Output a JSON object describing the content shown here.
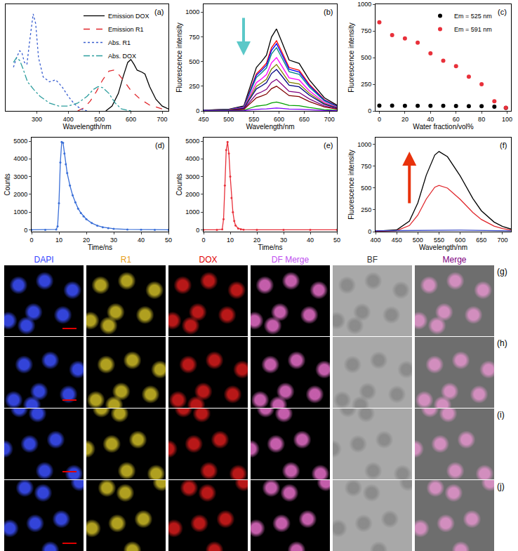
{
  "chart_data": [
    {
      "type": "line",
      "label": "(a)",
      "x_label": "Wavelength/nm",
      "xlim": [
        200,
        720
      ],
      "xticks": [
        300,
        400,
        500,
        600,
        700
      ],
      "ylim": [
        0,
        1.1
      ],
      "tick_labels": "x",
      "grid": false,
      "legend": "top right",
      "series": [
        {
          "name": "Emission DOX",
          "color": "#000000",
          "line_style": "solid",
          "x": [
            520,
            540,
            560,
            575,
            590,
            600,
            610,
            620,
            635,
            645,
            660,
            680,
            700,
            720
          ],
          "values": [
            0,
            0.05,
            0.18,
            0.35,
            0.5,
            0.53,
            0.48,
            0.42,
            0.4,
            0.38,
            0.25,
            0.12,
            0.05,
            0.02
          ]
        },
        {
          "name": "Emission R1",
          "color": "#e0262b",
          "line_style": "dash",
          "x": [
            430,
            450,
            470,
            490,
            510,
            530,
            545,
            560,
            580,
            600,
            630,
            660,
            700,
            720
          ],
          "values": [
            0,
            0.03,
            0.1,
            0.2,
            0.32,
            0.41,
            0.42,
            0.38,
            0.3,
            0.21,
            0.12,
            0.06,
            0.02,
            0.01
          ]
        },
        {
          "name": "Abs. R1",
          "color": "#3a5fd0",
          "line_style": "dot",
          "x": [
            225,
            235,
            245,
            252,
            260,
            268,
            278,
            288,
            296,
            305,
            320,
            340,
            360,
            380,
            400,
            420,
            440,
            460
          ],
          "values": [
            0.45,
            0.55,
            0.62,
            0.6,
            0.5,
            0.48,
            0.75,
            1.0,
            0.9,
            0.55,
            0.35,
            0.3,
            0.32,
            0.25,
            0.15,
            0.07,
            0.02,
            0
          ]
        },
        {
          "name": "Abs. DOX",
          "color": "#2e9e9e",
          "line_style": "dashdot",
          "x": [
            225,
            235,
            245,
            255,
            270,
            290,
            310,
            340,
            370,
            400,
            430,
            460,
            480,
            495,
            510,
            530,
            550,
            570,
            600
          ],
          "values": [
            0.5,
            0.55,
            0.52,
            0.44,
            0.3,
            0.22,
            0.15,
            0.08,
            0.05,
            0.05,
            0.08,
            0.15,
            0.22,
            0.25,
            0.24,
            0.18,
            0.08,
            0.02,
            0
          ]
        }
      ]
    },
    {
      "type": "line",
      "label": "(b)",
      "x_label": "Wavelength/nm",
      "y_label": "Fluorescence intensity",
      "xlim": [
        450,
        715
      ],
      "xticks": [
        450,
        500,
        550,
        600,
        650,
        700
      ],
      "ylim": [
        0,
        1080
      ],
      "yticks": [
        0,
        250,
        500,
        750,
        1000
      ],
      "grid": false,
      "x": [
        450,
        500,
        530,
        545,
        555,
        565,
        575,
        585,
        595,
        605,
        620,
        640,
        660,
        690,
        715
      ],
      "series": [
        {
          "color": "#000000",
          "values": [
            8,
            17,
            50,
            291,
            440,
            498,
            564,
            747,
            830,
            706,
            515,
            481,
            315,
            133,
            58
          ]
        },
        {
          "color": "#ff0000",
          "values": [
            7,
            14,
            43,
            249,
            376,
            426,
            483,
            639,
            710,
            604,
            440,
            412,
            270,
            114,
            50
          ]
        },
        {
          "color": "#0000ff",
          "values": [
            7,
            14,
            41,
            238,
            360,
            408,
            462,
            612,
            680,
            578,
            422,
            394,
            258,
            109,
            48
          ]
        },
        {
          "color": "#008080",
          "values": [
            6,
            13,
            38,
            224,
            339,
            384,
            435,
            576,
            640,
            544,
            397,
            371,
            243,
            102,
            45
          ]
        },
        {
          "color": "#ff00ff",
          "values": [
            5,
            11,
            32,
            189,
            286,
            324,
            367,
            486,
            540,
            459,
            335,
            313,
            205,
            86,
            38
          ]
        },
        {
          "color": "#808000",
          "values": [
            5,
            9,
            28,
            165,
            249,
            282,
            320,
            423,
            470,
            400,
            291,
            273,
            179,
            75,
            33
          ]
        },
        {
          "color": "#000080",
          "values": [
            4,
            8,
            25,
            147,
            223,
            252,
            286,
            378,
            420,
            357,
            260,
            244,
            160,
            67,
            29
          ]
        },
        {
          "color": "#800080",
          "values": [
            3,
            6,
            19,
            112,
            170,
            192,
            218,
            288,
            320,
            272,
            198,
            186,
            122,
            51,
            22
          ]
        },
        {
          "color": "#800000",
          "values": [
            3,
            5,
            15,
            88,
            133,
            150,
            170,
            225,
            250,
            213,
            155,
            145,
            95,
            40,
            18
          ]
        },
        {
          "color": "#00a000",
          "values": [
            2,
            3,
            6,
            32,
            48,
            54,
            61,
            81,
            90,
            77,
            56,
            52,
            34,
            14,
            6
          ]
        },
        {
          "color": "#8000ff",
          "values": [
            1,
            2,
            3,
            11,
            16,
            18,
            20,
            27,
            30,
            26,
            19,
            17,
            11,
            5,
            2
          ]
        }
      ]
    },
    {
      "type": "scatter",
      "label": "(c)",
      "x_label": "Water fraction/vol%",
      "y_label": "Fluorescence intensity",
      "xlim": [
        -3,
        103
      ],
      "xticks": [
        0,
        20,
        40,
        60,
        80,
        100
      ],
      "ylim": [
        0,
        1000
      ],
      "yticks": [
        0,
        250,
        500,
        750,
        1000
      ],
      "grid": false,
      "legend": "top right",
      "x": [
        0,
        10,
        20,
        30,
        40,
        50,
        60,
        70,
        80,
        90,
        99
      ],
      "series": [
        {
          "name": "Em = 525 nm",
          "color": "#000000",
          "marker": "circle",
          "values": [
            50,
            50,
            48,
            48,
            47,
            47,
            46,
            45,
            44,
            40,
            28
          ]
        },
        {
          "name": "Em = 591 nm",
          "color": "#e8303a",
          "marker": "circle",
          "values": [
            830,
            710,
            680,
            640,
            540,
            470,
            420,
            320,
            250,
            90,
            30
          ]
        }
      ]
    },
    {
      "type": "line",
      "label": "(d)",
      "x_label": "Time/ns",
      "y_label": "Counts",
      "xlim": [
        0,
        50
      ],
      "xticks": [
        0,
        10,
        20,
        30,
        40,
        50
      ],
      "ylim": [
        -100,
        5200
      ],
      "yticks": [
        0,
        1000,
        2000,
        3000,
        4000,
        5000
      ],
      "grid": false,
      "series": [
        {
          "color": "#3a6fd8",
          "marker": "circle",
          "x": [
            0,
            5,
            9,
            9.5,
            10,
            10.5,
            11,
            11.5,
            12,
            12.5,
            13,
            14,
            15,
            16,
            17,
            18,
            19,
            20,
            22,
            24,
            26,
            28,
            30,
            35,
            40,
            45,
            50
          ],
          "values": [
            0,
            0,
            20,
            200,
            1500,
            3800,
            4950,
            4900,
            4300,
            3700,
            3200,
            2500,
            1950,
            1550,
            1200,
            950,
            760,
            600,
            380,
            240,
            150,
            100,
            60,
            20,
            5,
            0,
            0
          ]
        }
      ]
    },
    {
      "type": "line",
      "label": "(e)",
      "x_label": "Time/ns",
      "y_label": "Counts",
      "xlim": [
        0,
        50
      ],
      "xticks": [
        0,
        10,
        20,
        30,
        40,
        50
      ],
      "ylim": [
        -100,
        5200
      ],
      "yticks": [
        0,
        1000,
        2000,
        3000,
        4000,
        5000
      ],
      "grid": false,
      "series": [
        {
          "color": "#e8303a",
          "marker": "circle",
          "x": [
            0,
            5,
            7,
            7.5,
            8,
            8.5,
            9,
            9.5,
            10,
            10.5,
            11,
            11.5,
            12,
            13,
            14,
            15,
            20,
            30,
            40,
            50
          ],
          "values": [
            0,
            0,
            30,
            600,
            2500,
            4500,
            4950,
            4300,
            3000,
            1800,
            1000,
            500,
            250,
            80,
            30,
            10,
            0,
            0,
            0,
            0
          ]
        }
      ]
    },
    {
      "type": "line",
      "label": "(f)",
      "x_label": "Wavelength/nm",
      "y_label": "Fluorescence intensity",
      "xlim": [
        400,
        720
      ],
      "xticks": [
        400,
        450,
        500,
        550,
        600,
        650,
        700
      ],
      "ylim": [
        0,
        1080
      ],
      "yticks": [
        0,
        250,
        500,
        750,
        1000
      ],
      "grid": false,
      "x": [
        400,
        450,
        480,
        500,
        520,
        540,
        550,
        570,
        600,
        630,
        650,
        680,
        700,
        720
      ],
      "series": [
        {
          "color": "#000000",
          "values": [
            5,
            20,
            120,
            330,
            650,
            880,
            920,
            860,
            640,
            380,
            240,
            110,
            60,
            30
          ]
        },
        {
          "color": "#e0262b",
          "values": [
            3,
            12,
            70,
            190,
            375,
            510,
            530,
            500,
            370,
            220,
            140,
            64,
            35,
            17
          ]
        },
        {
          "color": "#3040c0",
          "values": [
            10,
            12,
            14,
            16,
            18,
            20,
            20,
            19,
            17,
            15,
            13,
            11,
            10,
            9
          ]
        }
      ]
    }
  ],
  "micrographs": {
    "columns": [
      {
        "label": "DAPI",
        "color": "#3344ff"
      },
      {
        "label": "R1",
        "color": "#e8a020"
      },
      {
        "label": "DOX",
        "color": "#e00000"
      },
      {
        "label": "DF Merge",
        "color": "#c050f0"
      },
      {
        "label": "BF",
        "color": "#333333"
      },
      {
        "label": "Merge",
        "color": "#800080"
      }
    ],
    "rows": [
      "(g)",
      "(h)",
      "(i)",
      "(j)"
    ]
  }
}
